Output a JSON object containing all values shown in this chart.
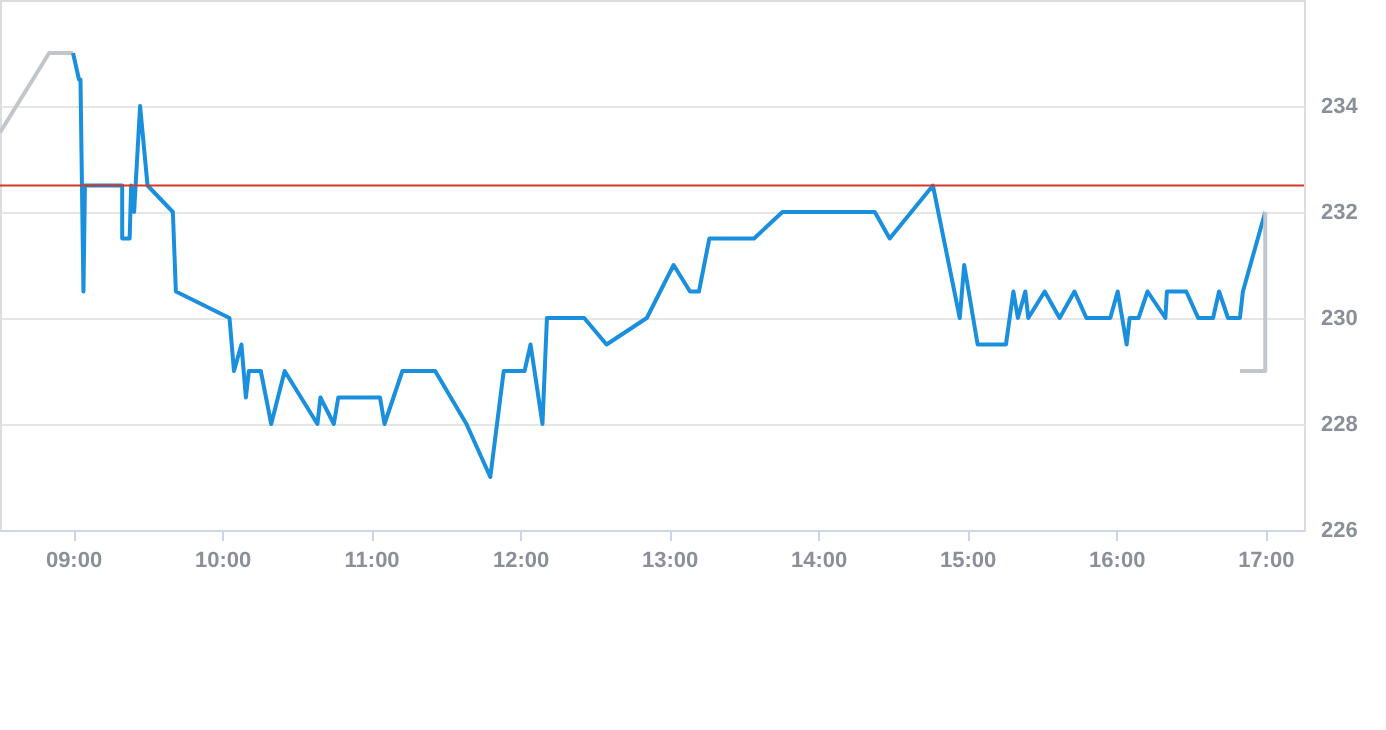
{
  "chart_data": {
    "type": "line",
    "xlim": [
      8.51,
      17.26
    ],
    "ylim": [
      226,
      236
    ],
    "xticks": [
      {
        "value": 9,
        "label": "09:00"
      },
      {
        "value": 10,
        "label": "10:00"
      },
      {
        "value": 11,
        "label": "11:00"
      },
      {
        "value": 12,
        "label": "12:00"
      },
      {
        "value": 13,
        "label": "13:00"
      },
      {
        "value": 14,
        "label": "14:00"
      },
      {
        "value": 15,
        "label": "15:00"
      },
      {
        "value": 16,
        "label": "16:00"
      },
      {
        "value": 17,
        "label": "17:00"
      }
    ],
    "yticks": [
      226,
      228,
      230,
      232,
      234
    ],
    "grid": "y",
    "marker": "none",
    "line_style": "solid",
    "ref_lines": [
      {
        "axis": "y",
        "value": 232.5,
        "color": "#d0392b"
      }
    ],
    "series": [
      {
        "color": "#c0c6cc",
        "x": [
          8.51,
          8.84,
          9.0
        ],
        "values": [
          233.5,
          235,
          235
        ]
      },
      {
        "color": "#1a8fdd",
        "x": [
          9.0,
          9.04,
          9.05,
          9.07,
          9.08,
          9.33,
          9.33,
          9.38,
          9.39,
          9.41,
          9.45,
          9.5,
          9.67,
          9.69,
          10.05,
          10.08,
          10.13,
          10.16,
          10.18,
          10.26,
          10.33,
          10.42,
          10.64,
          10.66,
          10.75,
          10.78,
          11.06,
          11.09,
          11.21,
          11.43,
          11.64,
          11.8,
          11.89,
          12.03,
          12.07,
          12.15,
          12.18,
          12.43,
          12.58,
          12.85,
          13.03,
          13.14,
          13.2,
          13.27,
          13.57,
          13.76,
          14.38,
          14.48,
          14.77,
          14.95,
          14.98,
          15.07,
          15.26,
          15.31,
          15.34,
          15.39,
          15.41,
          15.52,
          15.62,
          15.72,
          15.8,
          15.96,
          16.01,
          16.07,
          16.09,
          16.15,
          16.21,
          16.33,
          16.34,
          16.47,
          16.55,
          16.65,
          16.69,
          16.75,
          16.83,
          16.85,
          17.0
        ],
        "values": [
          235,
          234.5,
          234.5,
          230.5,
          232.5,
          232.5,
          231.5,
          231.5,
          232.5,
          232,
          234,
          232.5,
          232,
          230.5,
          230,
          229,
          229.5,
          228.5,
          229,
          229,
          228,
          229,
          228,
          228.5,
          228,
          228.5,
          228.5,
          228,
          229,
          229,
          228,
          227,
          229,
          229,
          229.5,
          228,
          230,
          230,
          229.5,
          230,
          231,
          230.5,
          230.5,
          231.5,
          231.5,
          232,
          232,
          231.5,
          232.5,
          230,
          231,
          229.5,
          229.5,
          230.5,
          230,
          230.5,
          230,
          230.5,
          230,
          230.5,
          230,
          230,
          230.5,
          229.5,
          230,
          230,
          230.5,
          230,
          230.5,
          230.5,
          230,
          230,
          230.5,
          230,
          230,
          230.5,
          232
        ]
      },
      {
        "color": "#c0c6cc",
        "x": [
          17.0,
          17.0,
          16.83
        ],
        "values": [
          232,
          229,
          229
        ]
      }
    ]
  }
}
